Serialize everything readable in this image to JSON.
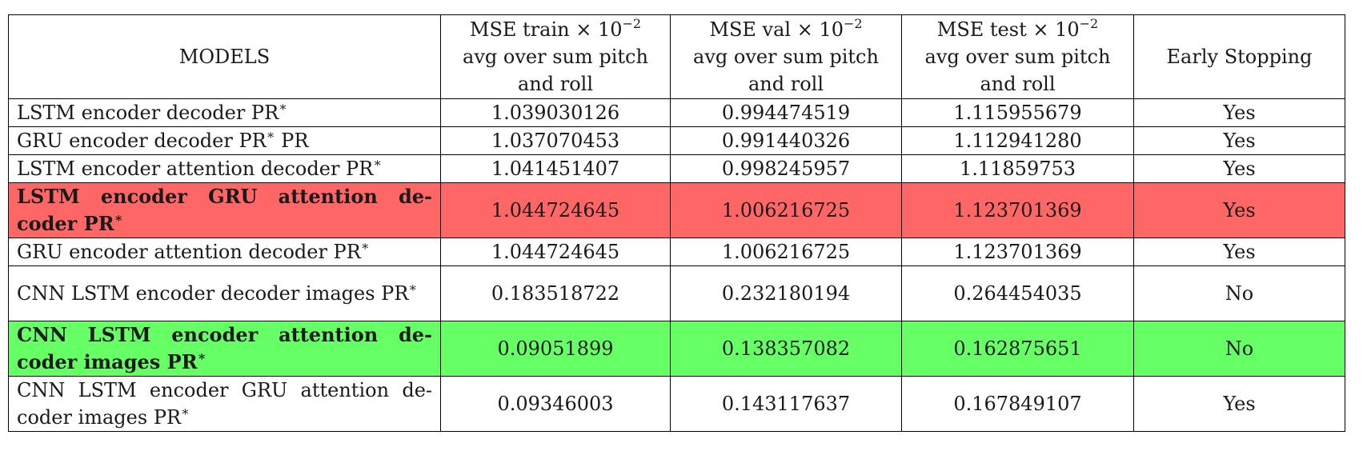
{
  "table": {
    "headers": {
      "models": "MODELS",
      "train": {
        "line1": "MSE train × 10",
        "exp": "−2",
        "line2": "avg over sum pitch",
        "line3": "and roll"
      },
      "val": {
        "line1": "MSE val × 10",
        "exp": "−2",
        "line2": "avg over sum pitch",
        "line3": "and roll"
      },
      "test": {
        "line1": "MSE test × 10",
        "exp": "−2",
        "line2": "avg over sum pitch",
        "line3": "and roll"
      },
      "early": "Early Stopping"
    },
    "rows": [
      {
        "model": "LSTM encoder decoder PR",
        "suffix": "",
        "train": "1.039030126",
        "val": "0.994474519",
        "test": "1.115955679",
        "early": "Yes"
      },
      {
        "model": "GRU encoder decoder PR",
        "suffix": " PR",
        "train": "1.037070453",
        "val": "0.991440326",
        "test": "1.112941280",
        "early": "Yes"
      },
      {
        "model": "LSTM encoder attention decoder PR",
        "suffix": "",
        "train": "1.041451407",
        "val": "0.998245957",
        "test": "1.11859753",
        "early": "Yes"
      },
      {
        "model": "LSTM encoder GRU attention de-coder PR",
        "suffix": "",
        "train": "1.044724645",
        "val": "1.006216725",
        "test": "1.123701369",
        "early": "Yes"
      },
      {
        "model": "GRU encoder attention decoder PR",
        "suffix": "",
        "train": "1.044724645",
        "val": "1.006216725",
        "test": "1.123701369",
        "early": "Yes"
      },
      {
        "model": "CNN LSTM encoder decoder images PR",
        "suffix": "",
        "train": "0.183518722",
        "val": "0.232180194",
        "test": "0.264454035",
        "early": "No"
      },
      {
        "model": "CNN LSTM encoder attention de-coder images PR",
        "suffix": "",
        "train": "0.09051899",
        "val": "0.138357082",
        "test": "0.162875651",
        "early": "No"
      },
      {
        "model": "CNN LSTM encoder GRU attention de-coder images PR",
        "suffix": "",
        "train": "0.09346003",
        "val": "0.143117637",
        "test": "0.167849107",
        "early": "Yes"
      }
    ],
    "star": "∗",
    "highlight_colors": {
      "red": "#ff6666",
      "green": "#66ff66"
    }
  }
}
